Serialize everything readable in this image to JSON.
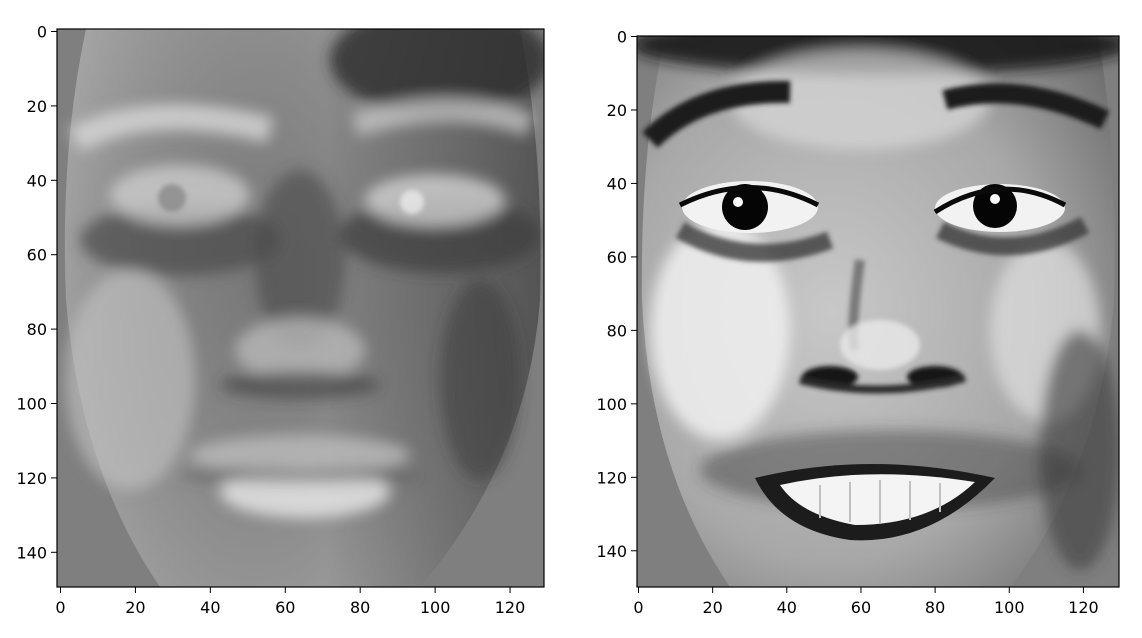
{
  "panels": [
    {
      "id": "left",
      "x_ticks": [
        "0",
        "20",
        "40",
        "60",
        "80",
        "100",
        "120"
      ],
      "y_ticks": [
        "0",
        "20",
        "40",
        "60",
        "80",
        "100",
        "120",
        "140"
      ]
    },
    {
      "id": "right",
      "x_ticks": [
        "0",
        "20",
        "40",
        "60",
        "80",
        "100",
        "120"
      ],
      "y_ticks": [
        "0",
        "20",
        "40",
        "60",
        "80",
        "100",
        "120",
        "140"
      ]
    }
  ]
}
